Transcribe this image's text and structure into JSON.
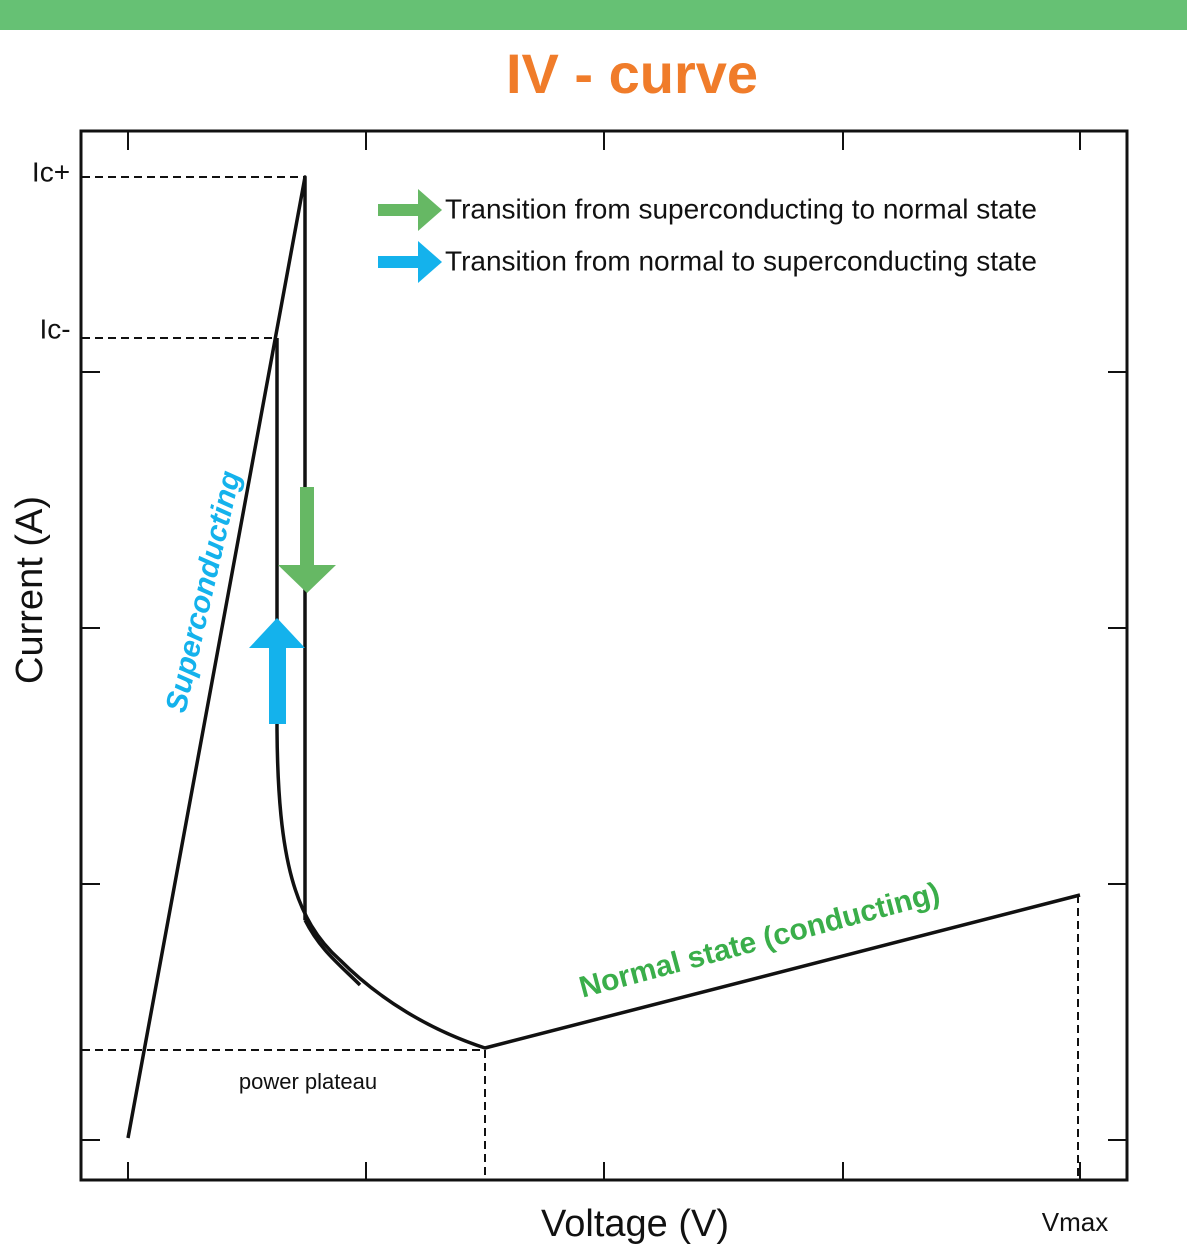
{
  "header": {
    "title": "IV - curve"
  },
  "axes": {
    "x_label": "Voltage (V)",
    "y_label": "Current (A)"
  },
  "markers": {
    "ic_plus": "Ic+",
    "ic_minus": "Ic-",
    "vmax": "Vmax"
  },
  "legend": [
    {
      "label": "Transition from superconducting to normal state"
    },
    {
      "label": "Transition from normal to superconducting state"
    }
  ],
  "annotations": {
    "superconducting": "Superconducting",
    "normal": "Normal state (conducting)",
    "plateau": "power plateau"
  }
}
